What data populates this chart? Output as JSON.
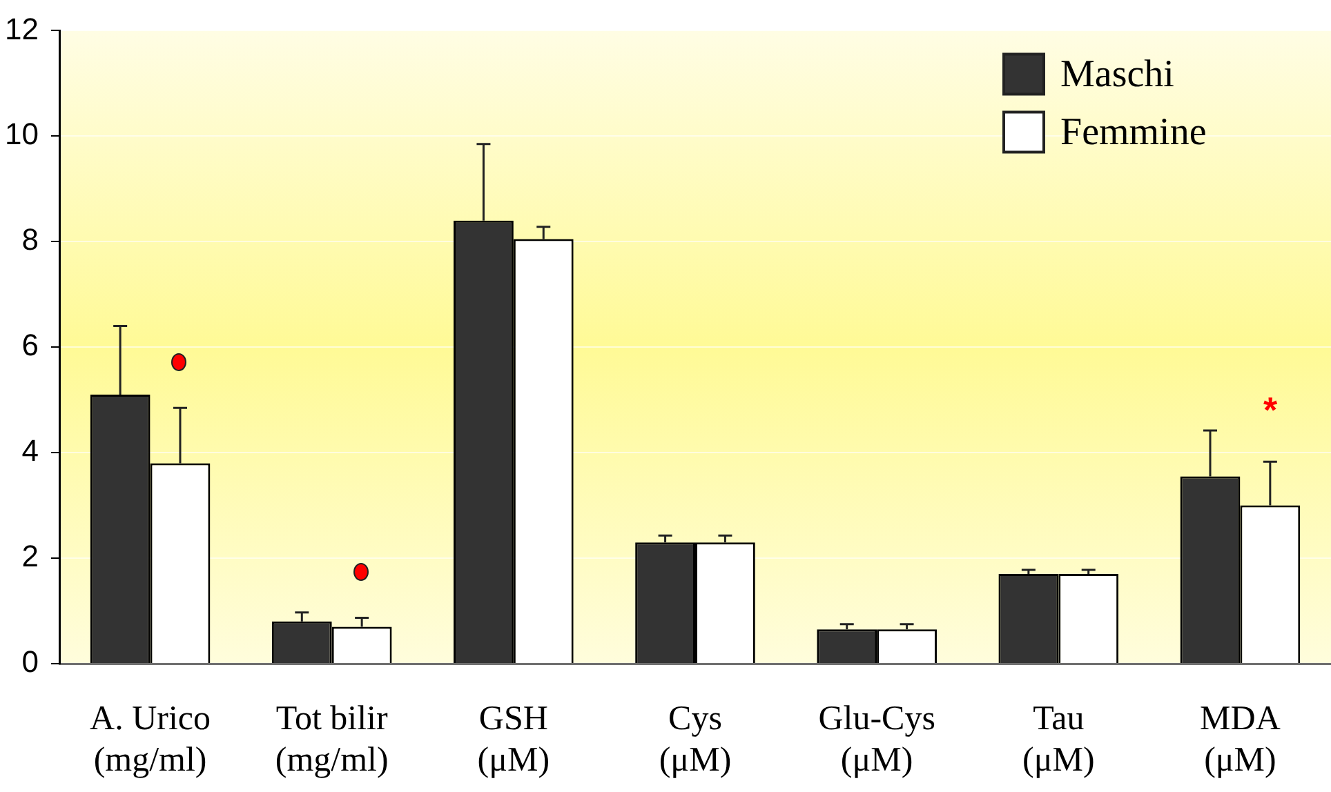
{
  "chart_data": {
    "type": "bar",
    "categories": [
      "A. Urico\n(mg/ml)",
      "Tot bilir\n(mg/ml)",
      "GSH\n(μM)",
      "Cys\n(μM)",
      "Glu-Cys\n(μM)",
      "Tau\n(μM)",
      "MDA\n(μM)"
    ],
    "series": [
      {
        "name": "Maschi",
        "color": "#333333",
        "values": [
          5.1,
          0.8,
          8.4,
          2.3,
          0.65,
          1.7,
          3.55
        ],
        "errors": [
          [
            5.1,
            6.4
          ],
          [
            0.8,
            0.97
          ],
          [
            8.4,
            9.85
          ],
          [
            2.3,
            2.43
          ],
          [
            0.65,
            0.75
          ],
          [
            1.7,
            1.78
          ],
          [
            3.55,
            4.42
          ]
        ]
      },
      {
        "name": "Femmine",
        "color": "#ffffff",
        "values": [
          3.8,
          0.7,
          8.05,
          2.3,
          0.65,
          1.7,
          3.0
        ],
        "errors": [
          [
            3.8,
            4.85
          ],
          [
            0.7,
            0.87
          ],
          [
            8.05,
            8.28
          ],
          [
            2.3,
            2.43
          ],
          [
            0.65,
            0.75
          ],
          [
            1.7,
            1.78
          ],
          [
            3.0,
            3.83
          ]
        ]
      }
    ],
    "ylim": [
      0,
      12
    ],
    "yticks": [
      0,
      2,
      4,
      6,
      8,
      10,
      12
    ],
    "grid": "y",
    "legend": "top right",
    "annotations": [
      "*"
    ]
  }
}
